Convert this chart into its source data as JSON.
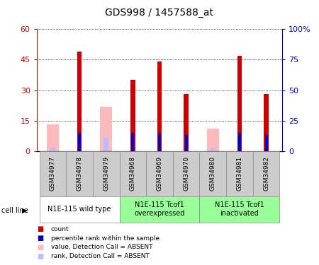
{
  "title": "GDS998 / 1457588_at",
  "samples": [
    "GSM34977",
    "GSM34978",
    "GSM34979",
    "GSM34968",
    "GSM34969",
    "GSM34970",
    "GSM34980",
    "GSM34981",
    "GSM34982"
  ],
  "cell_line_groups": [
    {
      "label": "N1E-115 wild type",
      "indices": [
        0,
        1,
        2
      ],
      "bg": "#ffffff"
    },
    {
      "label": "N1E-115 Tcof1\noverexpressed",
      "indices": [
        3,
        4,
        5
      ],
      "bg": "#99ff99"
    },
    {
      "label": "N1E-115 Tcof1\ninactivated",
      "indices": [
        6,
        7,
        8
      ],
      "bg": "#99ff99"
    }
  ],
  "count_values": [
    null,
    49,
    null,
    35,
    44,
    28,
    null,
    47,
    28
  ],
  "percentile_values": [
    null,
    15,
    null,
    15,
    15,
    13,
    null,
    15,
    13
  ],
  "absent_value_values": [
    13,
    null,
    22,
    null,
    null,
    null,
    11,
    null,
    null
  ],
  "absent_rank_values": [
    3,
    null,
    11,
    null,
    null,
    null,
    3,
    null,
    null
  ],
  "left_yticks": [
    0,
    15,
    30,
    45,
    60
  ],
  "left_yticklabels": [
    "0",
    "15",
    "30",
    "45",
    "60"
  ],
  "right_yticks": [
    0,
    25,
    50,
    75,
    100
  ],
  "right_yticklabels": [
    "0",
    "25",
    "50",
    "75",
    "100%"
  ],
  "ylim_left": [
    0,
    60
  ],
  "ylim_right": [
    0,
    100
  ],
  "color_count": "#cc0000",
  "color_percentile": "#0000cc",
  "color_absent_value": "#ffbbbb",
  "color_absent_rank": "#bbbbff",
  "sample_box_color": "#cccccc",
  "legend_items": [
    {
      "color": "#cc0000",
      "label": "count"
    },
    {
      "color": "#0000cc",
      "label": "percentile rank within the sample"
    },
    {
      "color": "#ffbbbb",
      "label": "value, Detection Call = ABSENT"
    },
    {
      "color": "#bbbbff",
      "label": "rank, Detection Call = ABSENT"
    }
  ]
}
